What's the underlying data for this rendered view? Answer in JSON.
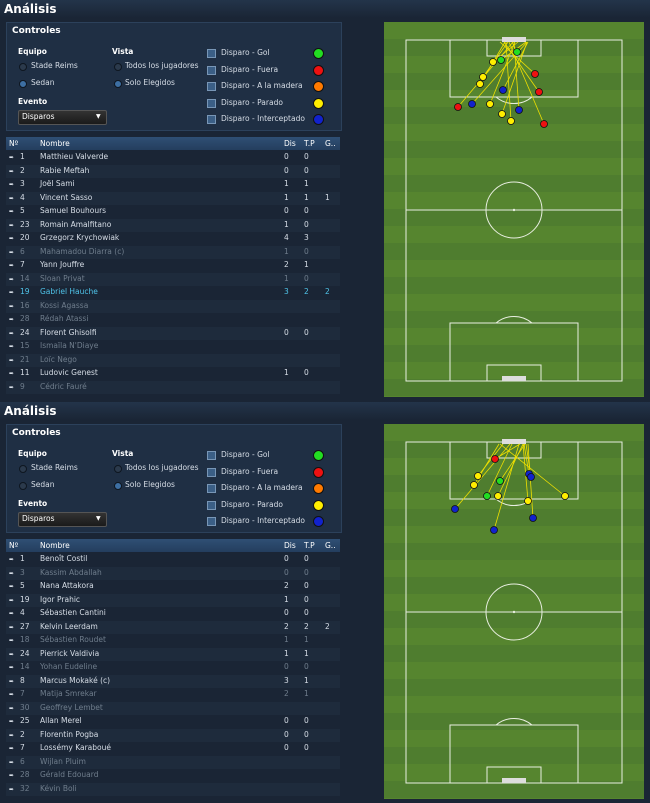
{
  "panels": [
    {
      "title": "Análisis",
      "controls": {
        "title": "Controles",
        "equipo_label": "Equipo",
        "teams": [
          "Stade Reims",
          "Sedan"
        ],
        "vista_label": "Vista",
        "vista_options": [
          "Todos los jugadores",
          "Solo Elegidos"
        ],
        "evento_label": "Evento",
        "evento_value": "Disparos",
        "legend": [
          {
            "label": "Disparo - Gol",
            "color": "#22dd22"
          },
          {
            "label": "Disparo - Fuera",
            "color": "#ee1111"
          },
          {
            "label": "Disparo - A la madera",
            "color": "#ff7a00"
          },
          {
            "label": "Disparo - Parado",
            "color": "#ffee00"
          },
          {
            "label": "Disparo - Interceptado",
            "color": "#1122cc"
          }
        ]
      },
      "table": {
        "headers": [
          "Nº",
          "Nombre",
          "Dis",
          "T.P",
          "G.."
        ],
        "rows": [
          {
            "num": 1,
            "name": "Matthieu Valverde",
            "dis": 0,
            "tp": 0,
            "g": null
          },
          {
            "num": 2,
            "name": "Rabie Meftah",
            "dis": 0,
            "tp": 0,
            "g": null
          },
          {
            "num": 3,
            "name": "Joël Sami",
            "dis": 1,
            "tp": 1,
            "g": null
          },
          {
            "num": 4,
            "name": "Vincent Sasso",
            "dis": 1,
            "tp": 1,
            "g": 1
          },
          {
            "num": 5,
            "name": "Samuel Bouhours",
            "dis": 0,
            "tp": 0,
            "g": null
          },
          {
            "num": 23,
            "name": "Romain Amalfitano",
            "dis": 1,
            "tp": 0,
            "g": null
          },
          {
            "num": 20,
            "name": "Grzegorz Krychowiak",
            "dis": 4,
            "tp": 3,
            "g": null
          },
          {
            "num": 6,
            "name": "Mahamadou Diarra (c)",
            "dis": 1,
            "tp": 0,
            "g": null,
            "color": "#6f7d8c"
          },
          {
            "num": 7,
            "name": "Yann Jouffre",
            "dis": 2,
            "tp": 1,
            "g": null
          },
          {
            "num": 14,
            "name": "Sloan Privat",
            "dis": 1,
            "tp": 0,
            "g": null,
            "color": "#6f7d8c"
          },
          {
            "num": 19,
            "name": "Gabriel Hauche",
            "dis": 3,
            "tp": 2,
            "g": 2,
            "color": "#4fc3e8"
          },
          {
            "num": 16,
            "name": "Kossi Agassa",
            "dis": null,
            "tp": null,
            "g": null,
            "color": "#6f7d8c"
          },
          {
            "num": 28,
            "name": "Rédah Atassi",
            "dis": null,
            "tp": null,
            "g": null,
            "color": "#6f7d8c"
          },
          {
            "num": 24,
            "name": "Florent Ghisolfi",
            "dis": 0,
            "tp": 0,
            "g": null
          },
          {
            "num": 15,
            "name": "Ismaïla N'Diaye",
            "dis": null,
            "tp": null,
            "g": null,
            "color": "#6f7d8c"
          },
          {
            "num": 21,
            "name": "Loïc Nego",
            "dis": null,
            "tp": null,
            "g": null,
            "color": "#6f7d8c"
          },
          {
            "num": 11,
            "name": "Ludovic Genest",
            "dis": 1,
            "tp": 0,
            "g": null
          },
          {
            "num": 9,
            "name": "Cédric Fauré",
            "dis": null,
            "tp": null,
            "g": null,
            "color": "#6f7d8c"
          }
        ]
      }
    },
    {
      "title": "Análisis",
      "controls": {
        "title": "Controles",
        "equipo_label": "Equipo",
        "teams": [
          "Stade Reims",
          "Sedan"
        ],
        "vista_label": "Vista",
        "vista_options": [
          "Todos los jugadores",
          "Solo Elegidos"
        ],
        "evento_label": "Evento",
        "evento_value": "Disparos",
        "legend": [
          {
            "label": "Disparo - Gol",
            "color": "#22dd22"
          },
          {
            "label": "Disparo - Fuera",
            "color": "#ee1111"
          },
          {
            "label": "Disparo - A la madera",
            "color": "#ff7a00"
          },
          {
            "label": "Disparo - Parado",
            "color": "#ffee00"
          },
          {
            "label": "Disparo - Interceptado",
            "color": "#1122cc"
          }
        ]
      },
      "table": {
        "headers": [
          "Nº",
          "Nombre",
          "Dis",
          "T.P",
          "G.."
        ],
        "rows": [
          {
            "num": 1,
            "name": "Benoît Costil",
            "dis": 0,
            "tp": 0,
            "g": null
          },
          {
            "num": 3,
            "name": "Kassim Abdallah",
            "dis": 0,
            "tp": 0,
            "g": null,
            "color": "#6f7d8c"
          },
          {
            "num": 5,
            "name": "Nana Attakora",
            "dis": 2,
            "tp": 0,
            "g": null
          },
          {
            "num": 19,
            "name": "Igor Prahic",
            "dis": 1,
            "tp": 0,
            "g": null
          },
          {
            "num": 4,
            "name": "Sébastien Cantini",
            "dis": 0,
            "tp": 0,
            "g": null
          },
          {
            "num": 27,
            "name": "Kelvin Leerdam",
            "dis": 2,
            "tp": 2,
            "g": 2
          },
          {
            "num": 18,
            "name": "Sébastien Roudet",
            "dis": 1,
            "tp": 1,
            "g": null,
            "color": "#6f7d8c"
          },
          {
            "num": 24,
            "name": "Pierrick Valdivia",
            "dis": 1,
            "tp": 1,
            "g": null
          },
          {
            "num": 14,
            "name": "Yohan Eudeline",
            "dis": 0,
            "tp": 0,
            "g": null,
            "color": "#6f7d8c"
          },
          {
            "num": 8,
            "name": "Marcus Mokaké (c)",
            "dis": 3,
            "tp": 1,
            "g": null
          },
          {
            "num": 7,
            "name": "Matija Smrekar",
            "dis": 2,
            "tp": 1,
            "g": null,
            "color": "#6f7d8c"
          },
          {
            "num": 30,
            "name": "Geoffrey Lembet",
            "dis": null,
            "tp": null,
            "g": null,
            "color": "#6f7d8c"
          },
          {
            "num": 25,
            "name": "Allan Merel",
            "dis": 0,
            "tp": 0,
            "g": null
          },
          {
            "num": 2,
            "name": "Florentin Pogba",
            "dis": 0,
            "tp": 0,
            "g": null
          },
          {
            "num": 7,
            "name": "Lossémy Karaboué",
            "dis": 0,
            "tp": 0,
            "g": null
          },
          {
            "num": 6,
            "name": "Wijlan Pluim",
            "dis": null,
            "tp": null,
            "g": null,
            "color": "#6f7d8c"
          },
          {
            "num": 28,
            "name": "Gérald Edouard",
            "dis": null,
            "tp": null,
            "g": null,
            "color": "#6f7d8c"
          },
          {
            "num": 32,
            "name": "Kévin Boli",
            "dis": null,
            "tp": null,
            "g": null,
            "color": "#6f7d8c"
          }
        ]
      }
    }
  ]
}
